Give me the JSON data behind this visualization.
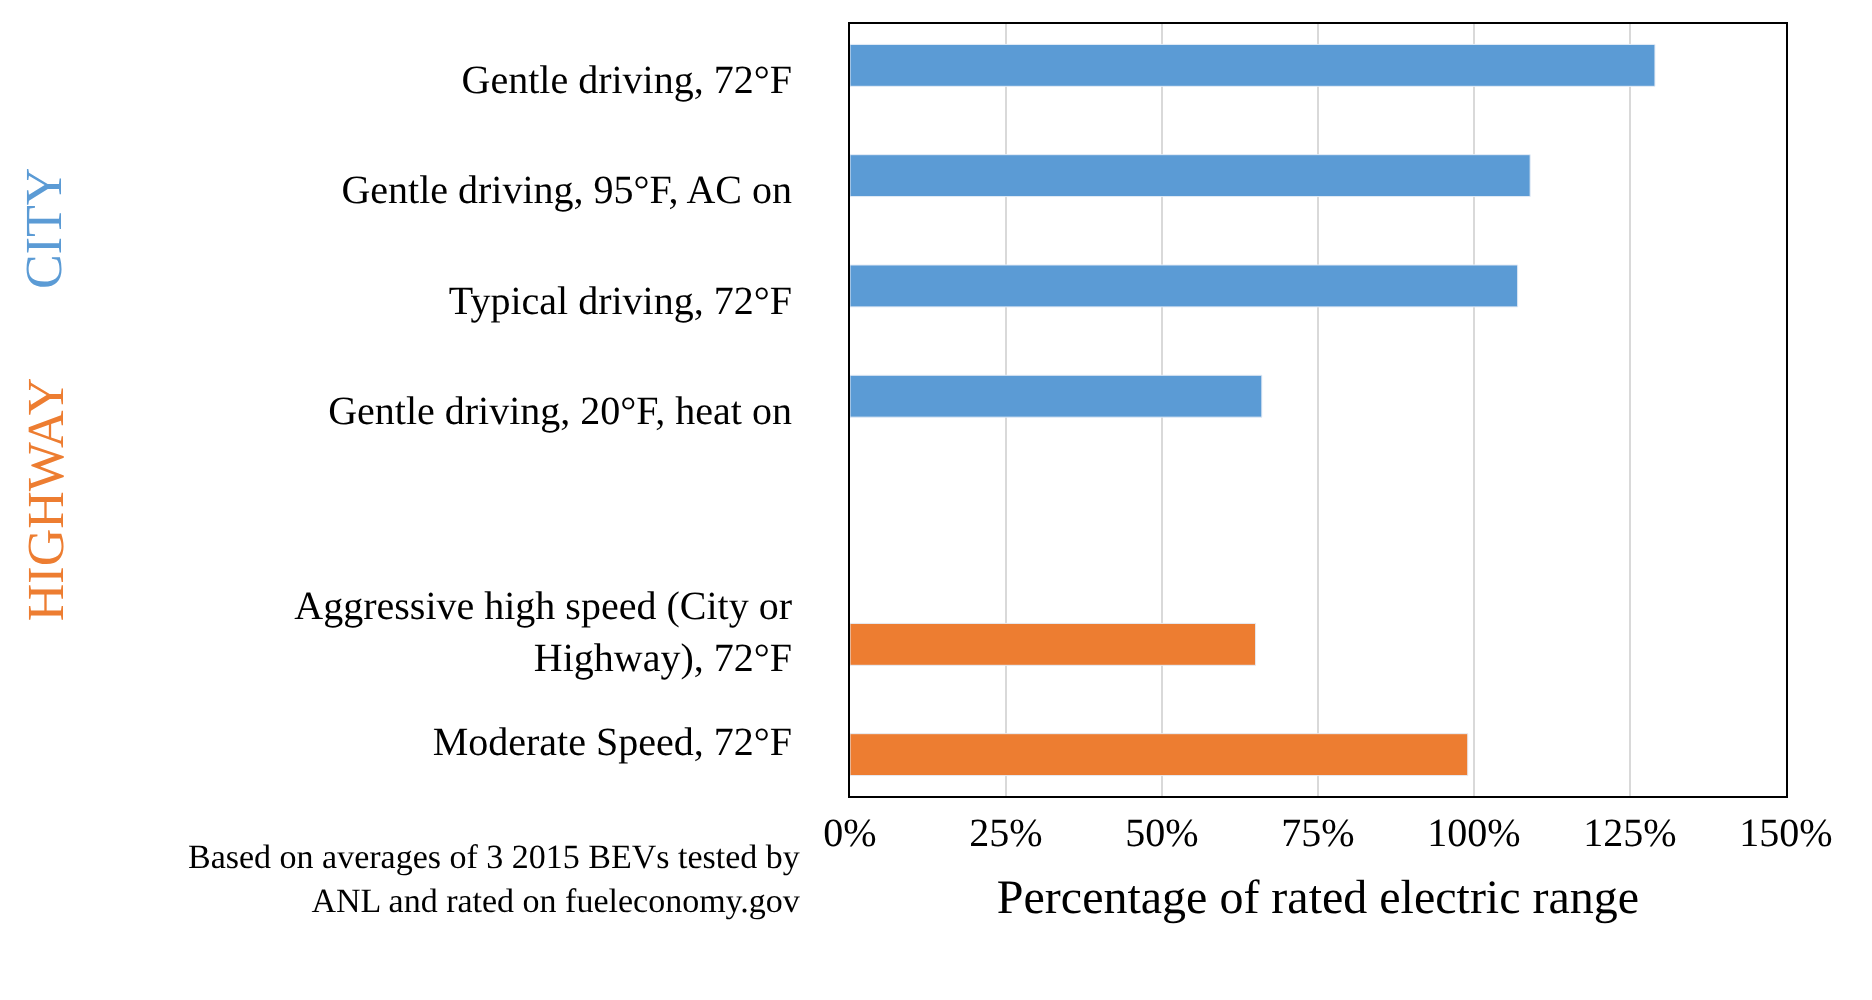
{
  "chart_data": {
    "type": "bar",
    "orientation": "horizontal",
    "categories": [
      "Gentle driving, 72°F",
      "Gentle driving, 95°F, AC on",
      "Typical driving, 72°F",
      "Gentle driving, 20°F, heat on",
      null,
      "Aggressive high speed (City or\nHighway), 72°F",
      "Moderate Speed, 72°F"
    ],
    "series": [
      {
        "color": "#5b9bd5",
        "values": [
          129,
          109,
          107,
          66,
          null,
          null,
          null
        ]
      },
      {
        "color": "#ed7d31",
        "values": [
          null,
          null,
          null,
          null,
          null,
          65,
          99
        ]
      }
    ],
    "xlim": [
      0,
      150
    ],
    "xticks": [
      {
        "value": 0,
        "label": "0%"
      },
      {
        "value": 25,
        "label": "25%"
      },
      {
        "value": 50,
        "label": "50%"
      },
      {
        "value": 75,
        "label": "75%"
      },
      {
        "value": 100,
        "label": "100%"
      },
      {
        "value": 125,
        "label": "125%"
      },
      {
        "value": 150,
        "label": "150%"
      }
    ],
    "xlabel": "Percentage of rated electric range",
    "grid": "x",
    "annotations": [
      "CITY",
      "HIGHWAY",
      "Based on averages of 3 2015 BEVs tested by\nANL and rated on fueleconomy.gov"
    ]
  }
}
